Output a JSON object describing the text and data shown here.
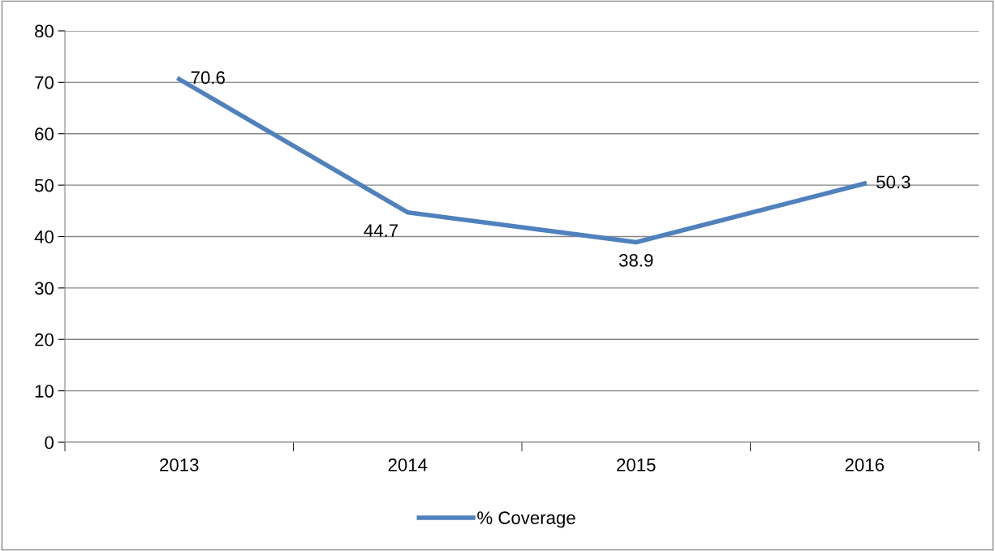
{
  "chart_data": {
    "type": "line",
    "categories": [
      "2013",
      "2014",
      "2015",
      "2016"
    ],
    "series": [
      {
        "name": "% Coverage",
        "color": "#4f81bd",
        "values": [
          70.6,
          44.7,
          38.9,
          50.3
        ]
      }
    ],
    "ylim": [
      0,
      80
    ],
    "yticks": [
      0,
      10,
      20,
      30,
      40,
      50,
      60,
      70,
      80
    ],
    "grid": "y",
    "legend": "bottom",
    "data_labels": true,
    "marker": "none",
    "line_style": "solid"
  }
}
